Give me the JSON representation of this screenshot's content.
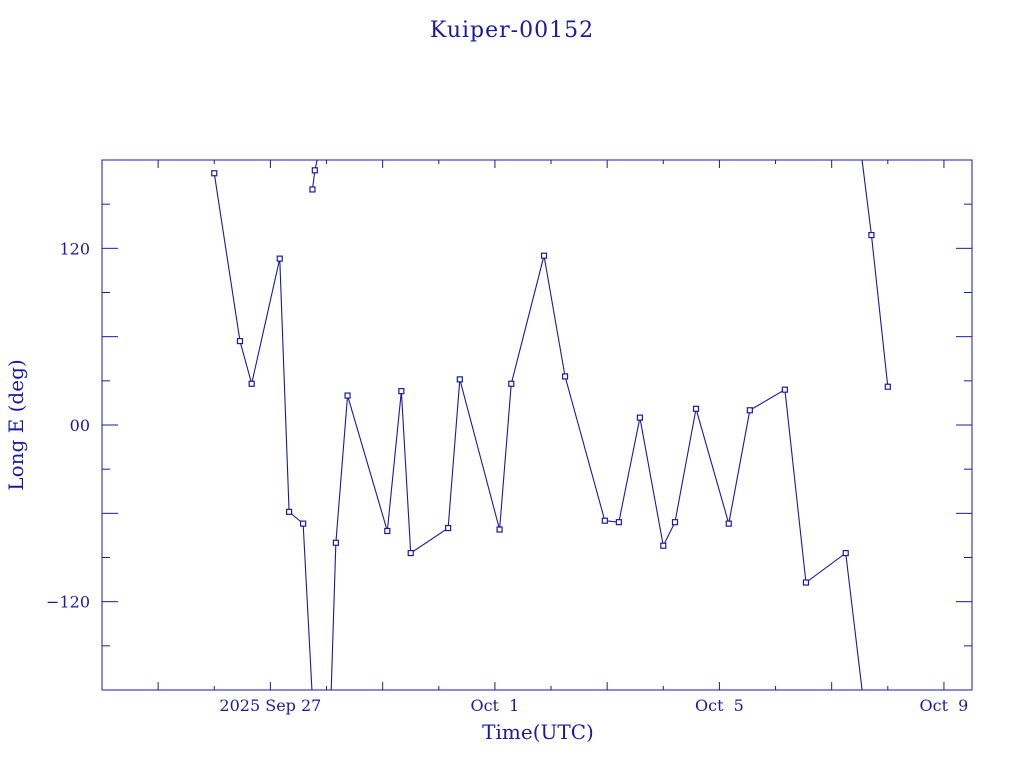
{
  "chart_data": {
    "type": "line",
    "title": "Kuiper-00152",
    "xlabel": "Time(UTC)",
    "ylabel": "Long E (deg)",
    "x_tick_labels": [
      {
        "date": "2025-09-27",
        "label": "2025 Sep 27"
      },
      {
        "date": "2025-10-01",
        "label": "Oct  1"
      },
      {
        "date": "2025-10-05",
        "label": "Oct  5"
      },
      {
        "date": "2025-10-09",
        "label": "Oct  9"
      }
    ],
    "y_ticks": [
      {
        "value": 120,
        "label": "120"
      },
      {
        "value": 0,
        "label": "00"
      },
      {
        "value": -120,
        "label": "−120"
      }
    ],
    "xlim": [
      "2025-09-24T00:00",
      "2025-10-09T12:00"
    ],
    "ylim": [
      -180,
      180
    ],
    "color": "#1a1aa0",
    "grid": false,
    "series": [
      {
        "name": "",
        "points": [
          [
            "2025-09-26T00:00",
            171
          ],
          [
            "2025-09-26T11:00",
            57
          ],
          [
            "2025-09-26T16:00",
            28
          ],
          [
            "2025-09-27T04:00",
            113
          ],
          [
            "2025-09-27T08:00",
            -59
          ],
          [
            "2025-09-27T14:00",
            -67
          ],
          [
            "2025-09-27T18:00",
            -187
          ],
          null,
          [
            "2025-09-27T18:00",
            160
          ],
          [
            "2025-09-27T19:00",
            173
          ],
          [
            "2025-09-27T20:00",
            180
          ],
          null,
          [
            "2025-09-28T02:00",
            -180
          ],
          [
            "2025-09-28T04:00",
            -80
          ],
          [
            "2025-09-28T09:00",
            20
          ],
          [
            "2025-09-29T02:00",
            -72
          ],
          [
            "2025-09-29T08:00",
            23
          ],
          [
            "2025-09-29T12:00",
            -87
          ],
          [
            "2025-09-30T04:00",
            -70
          ],
          [
            "2025-09-30T09:00",
            31
          ],
          [
            "2025-10-01T02:00",
            -71
          ],
          [
            "2025-10-01T07:00",
            28
          ],
          [
            "2025-10-01T21:00",
            115
          ],
          [
            "2025-10-02T06:00",
            33
          ],
          [
            "2025-10-02T23:00",
            -65
          ],
          [
            "2025-10-03T05:00",
            -66
          ],
          [
            "2025-10-03T14:00",
            5
          ],
          [
            "2025-10-04T00:00",
            -82
          ],
          [
            "2025-10-04T05:00",
            -66
          ],
          [
            "2025-10-04T14:00",
            11
          ],
          [
            "2025-10-05T04:00",
            -67
          ],
          [
            "2025-10-05T13:00",
            10
          ],
          [
            "2025-10-06T04:00",
            24
          ],
          [
            "2025-10-06T13:00",
            -107
          ],
          [
            "2025-10-07T06:00",
            -87
          ],
          [
            "2025-10-07T13:00",
            -180
          ],
          null,
          [
            "2025-10-07T13:00",
            180
          ],
          [
            "2025-10-07T17:00",
            129
          ],
          [
            "2025-10-08T00:00",
            26
          ]
        ]
      }
    ]
  }
}
